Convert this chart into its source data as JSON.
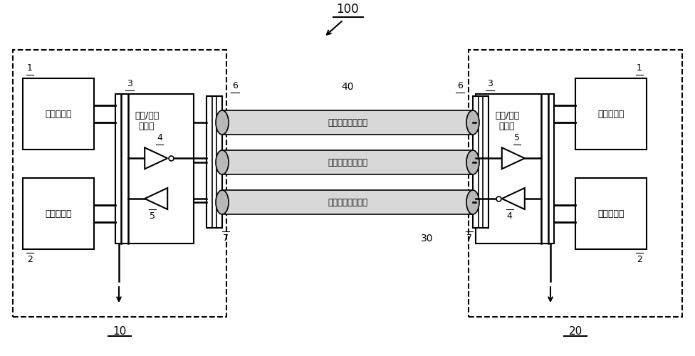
{
  "bg_color": "#ffffff",
  "line_color": "#000000",
  "title": "100",
  "label_10": "10",
  "label_20": "20",
  "label_40": "40",
  "label_30": "30",
  "box1_label": "电源电路块",
  "box2_label": "功能电路块",
  "io_label": "输入/输出\n电路块",
  "cable1_label": "电源地对传输线路",
  "cable2_label": "差分信号传输线路",
  "cable3_label": "差分信号传输线路",
  "num1": "1",
  "num2": "2",
  "num3": "3",
  "num4": "4",
  "num5": "5",
  "num6": "6",
  "num7": "7"
}
